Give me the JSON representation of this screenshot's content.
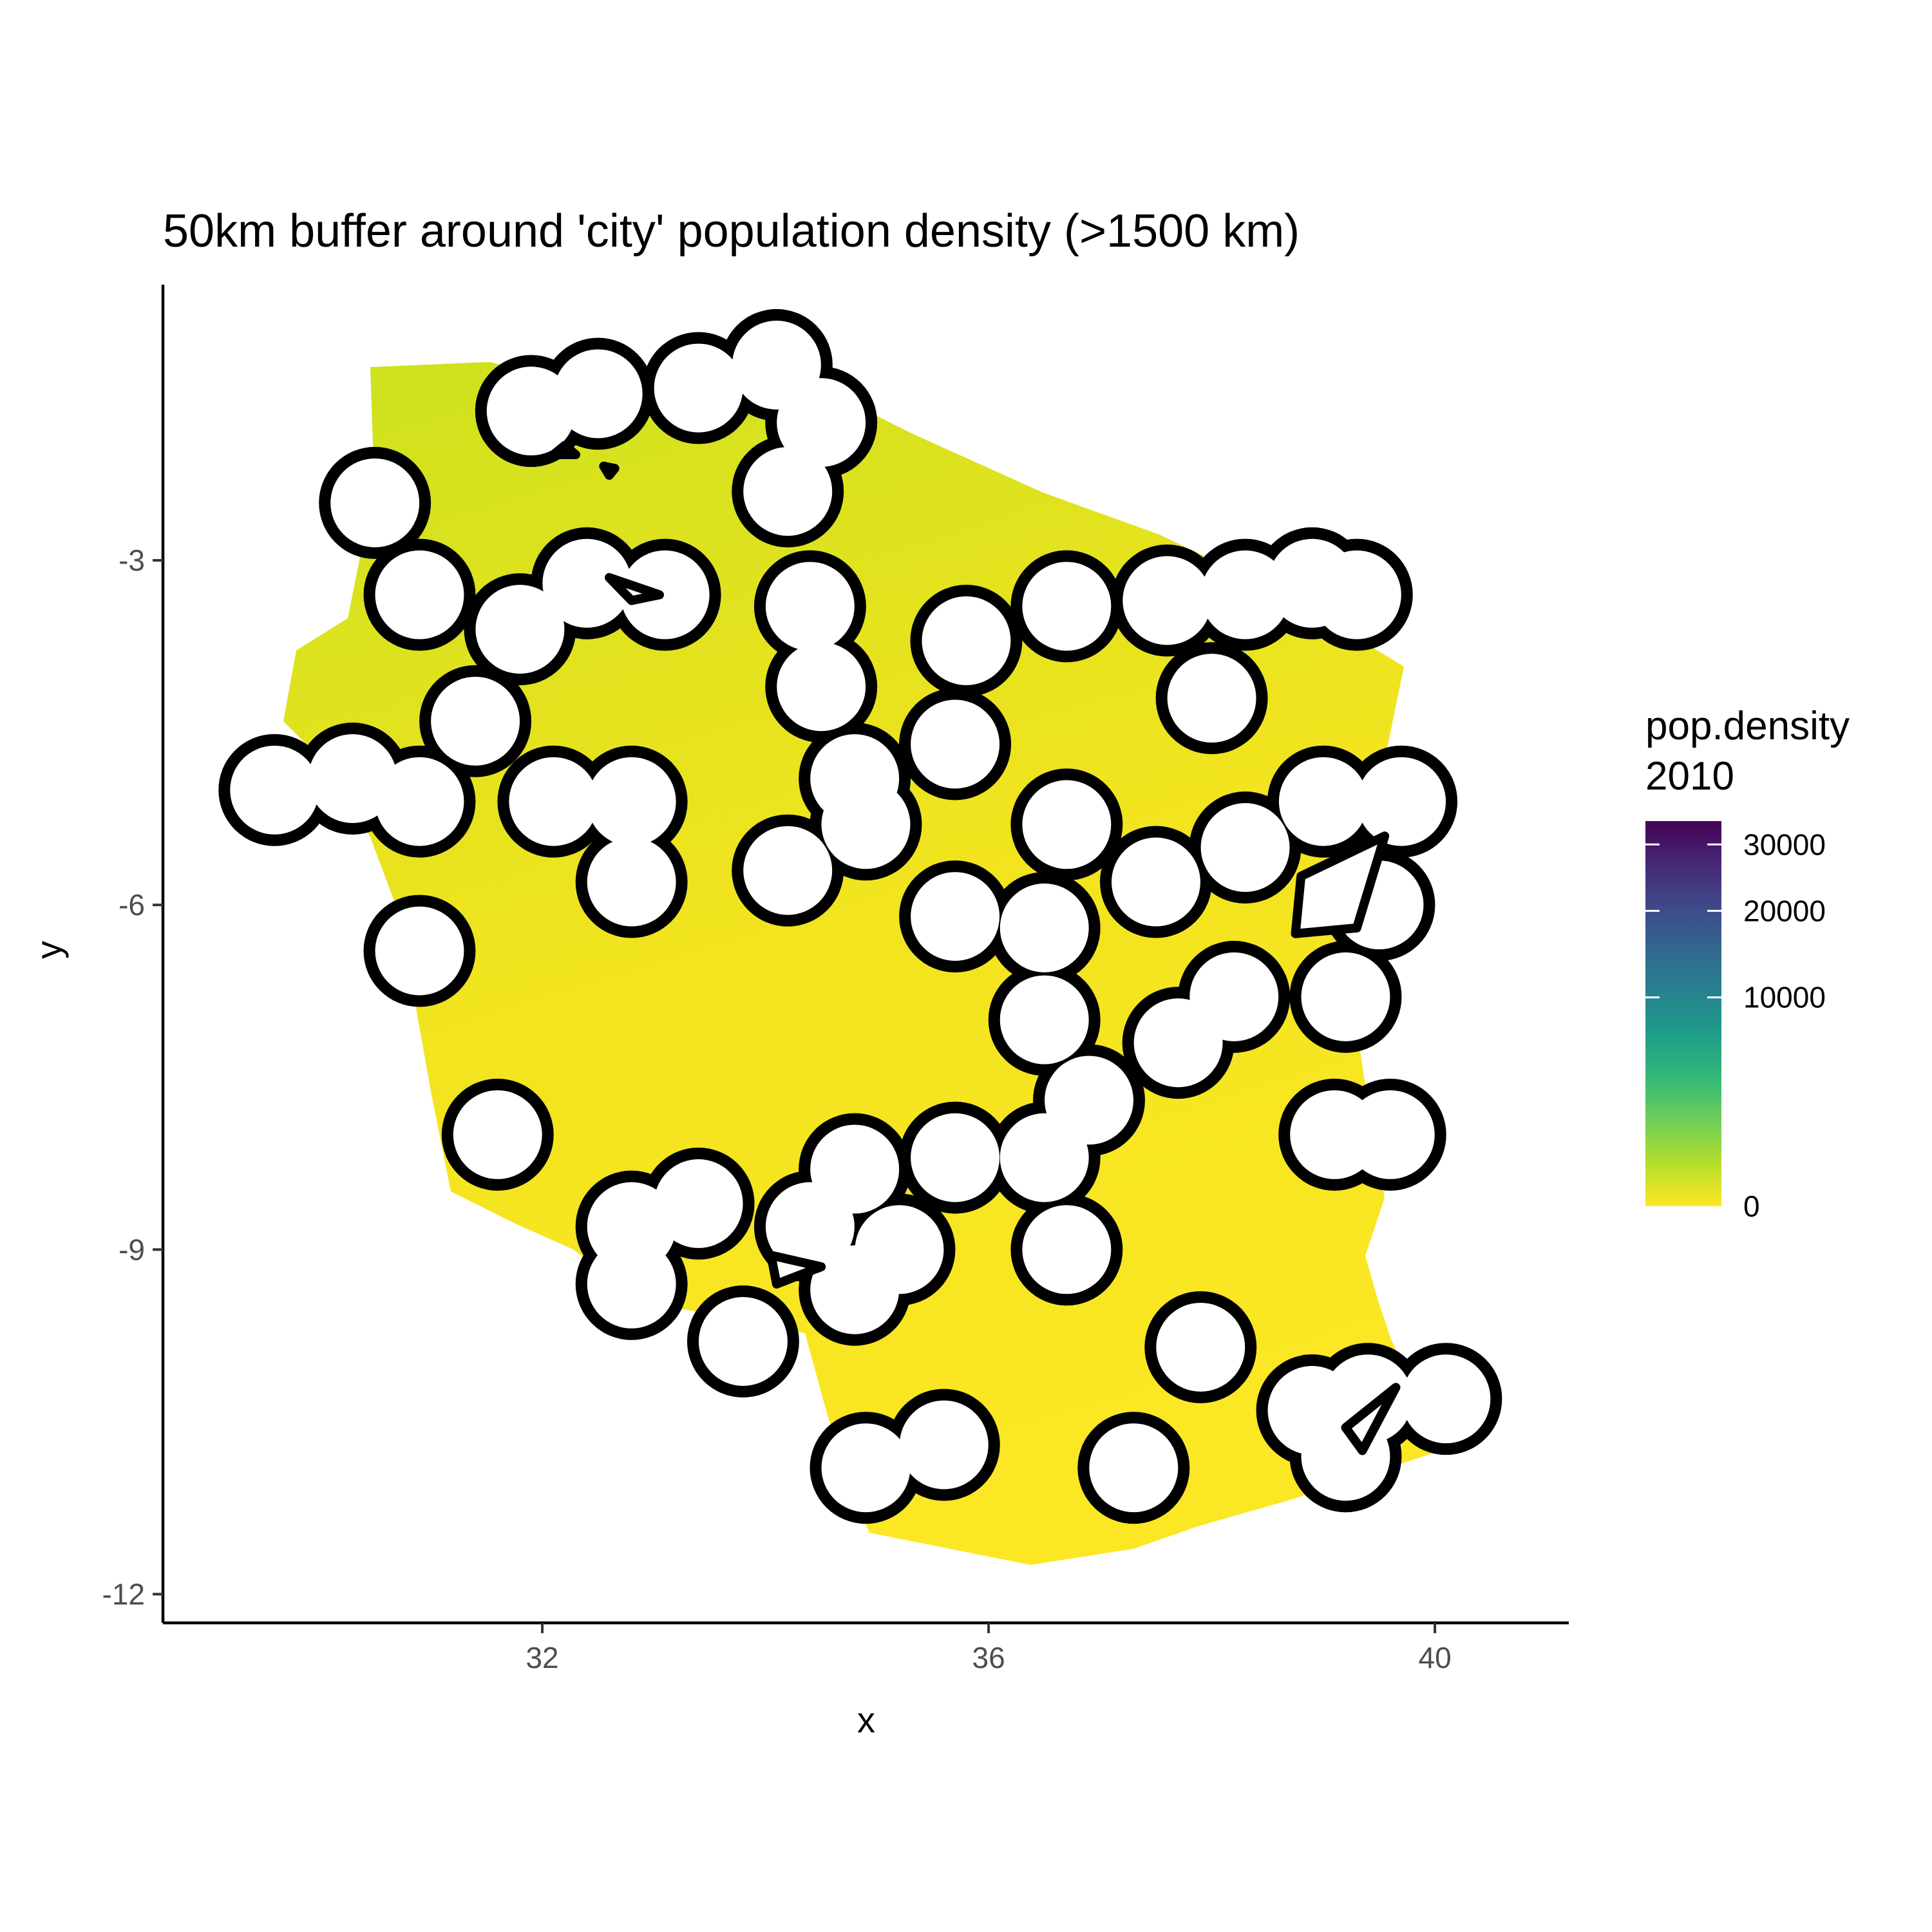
{
  "chart_data": {
    "type": "heatmap",
    "title": "50km buffer around 'city' population density (>1500 km)",
    "xlabel": "x",
    "ylabel": "y",
    "x_ticks": [
      32,
      36,
      40
    ],
    "y_ticks": [
      -3,
      -6,
      -9,
      -12
    ],
    "xlim": [
      28.6,
      41.2
    ],
    "ylim": [
      -12.25,
      -0.6
    ],
    "grid": false,
    "legend": {
      "title_line1": "pop.density",
      "title_line2": "2010",
      "position": "right",
      "breaks": [
        0,
        10000,
        20000,
        30000
      ],
      "labels": [
        "0",
        "10000",
        "20000",
        "30000"
      ],
      "max": 34000,
      "colors": [
        "#fde725",
        "#b5de2b",
        "#6ece58",
        "#35b779",
        "#1f9e89",
        "#26828e",
        "#31688e",
        "#3e4989",
        "#482878",
        "#440154"
      ]
    },
    "buffer_radius_deg": 0.45,
    "cities": [
      [
        30.5,
        -2.5
      ],
      [
        30.9,
        -3.3
      ],
      [
        31.9,
        -1.7
      ],
      [
        32.5,
        -1.55
      ],
      [
        33.4,
        -1.5
      ],
      [
        34.1,
        -1.3
      ],
      [
        34.5,
        -1.8
      ],
      [
        34.2,
        -2.4
      ],
      [
        34.4,
        -3.4
      ],
      [
        34.5,
        -4.1
      ],
      [
        33.1,
        -3.3
      ],
      [
        32.4,
        -3.2
      ],
      [
        31.8,
        -3.6
      ],
      [
        31.4,
        -4.4
      ],
      [
        30.3,
        -4.9
      ],
      [
        29.6,
        -5.0
      ],
      [
        30.9,
        -5.1
      ],
      [
        30.9,
        -6.4
      ],
      [
        31.6,
        -8.0
      ],
      [
        32.1,
        -5.1
      ],
      [
        32.8,
        -5.1
      ],
      [
        32.8,
        -5.8
      ],
      [
        34.8,
        -4.9
      ],
      [
        34.9,
        -5.3
      ],
      [
        34.2,
        -5.7
      ],
      [
        35.7,
        -4.6
      ],
      [
        35.8,
        -3.7
      ],
      [
        36.7,
        -3.4
      ],
      [
        37.6,
        -3.35
      ],
      [
        38.3,
        -3.3
      ],
      [
        38.9,
        -3.2
      ],
      [
        39.3,
        -3.3
      ],
      [
        38.0,
        -4.2
      ],
      [
        36.7,
        -5.3
      ],
      [
        36.5,
        -6.2
      ],
      [
        35.7,
        -6.1
      ],
      [
        37.5,
        -5.8
      ],
      [
        38.3,
        -5.5
      ],
      [
        39.0,
        -5.1
      ],
      [
        39.7,
        -5.1
      ],
      [
        39.5,
        -6.0
      ],
      [
        39.2,
        -6.8
      ],
      [
        38.2,
        -6.8
      ],
      [
        37.7,
        -7.2
      ],
      [
        36.5,
        -7.0
      ],
      [
        36.9,
        -7.7
      ],
      [
        36.5,
        -8.2
      ],
      [
        35.7,
        -8.2
      ],
      [
        34.8,
        -8.3
      ],
      [
        34.4,
        -8.8
      ],
      [
        33.4,
        -8.6
      ],
      [
        32.8,
        -8.8
      ],
      [
        32.8,
        -9.3
      ],
      [
        33.8,
        -9.8
      ],
      [
        34.8,
        -9.35
      ],
      [
        35.2,
        -9.0
      ],
      [
        36.7,
        -9.0
      ],
      [
        39.1,
        -8.0
      ],
      [
        39.6,
        -8.0
      ],
      [
        37.9,
        -9.85
      ],
      [
        38.9,
        -10.4
      ],
      [
        39.4,
        -10.3
      ],
      [
        40.1,
        -10.3
      ],
      [
        39.2,
        -10.8
      ],
      [
        34.9,
        -10.9
      ],
      [
        35.6,
        -10.7
      ],
      [
        37.3,
        -10.9
      ]
    ],
    "lake_outlines": [
      [
        [
          32.2,
          -2.0
        ],
        [
          32.3,
          -2.08
        ],
        [
          32.1,
          -2.08
        ]
      ],
      [
        [
          32.55,
          -2.18
        ],
        [
          32.65,
          -2.2
        ],
        [
          32.6,
          -2.26
        ]
      ],
      [
        [
          32.6,
          -3.15
        ],
        [
          33.05,
          -3.3
        ],
        [
          32.8,
          -3.35
        ]
      ],
      [
        [
          38.8,
          -5.75
        ],
        [
          39.55,
          -5.4
        ],
        [
          39.3,
          -6.2
        ],
        [
          38.75,
          -6.25
        ]
      ],
      [
        [
          34.05,
          -9.05
        ],
        [
          34.5,
          -9.15
        ],
        [
          34.1,
          -9.3
        ]
      ],
      [
        [
          39.2,
          -10.55
        ],
        [
          39.65,
          -10.2
        ],
        [
          39.35,
          -10.75
        ]
      ]
    ]
  }
}
